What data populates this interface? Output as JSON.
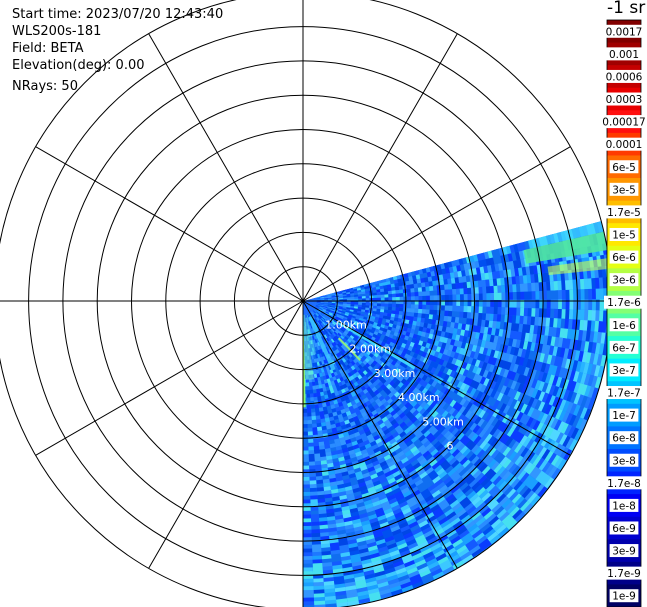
{
  "header": {
    "start_time": "Start time: 2023/07/20 12:43:40",
    "instrument": "WLS200s-181",
    "field": "Field: BETA",
    "elevation": "Elevation(deg): 0.00",
    "nrays": "NRays: 50",
    "colorbar_title": "-1 sr"
  },
  "chart_data": {
    "type": "heatmap",
    "projection": "polar PPI scan",
    "field": "BETA",
    "elevation_deg": 0.0,
    "n_rays": 50,
    "range_rings_km": [
      1,
      2,
      3,
      4,
      5,
      6,
      7,
      8,
      9
    ],
    "range_labels": [
      "1.00km",
      "2.00km",
      "3.00km",
      "4.00km",
      "5.00km",
      "6"
    ],
    "spokes_deg": [
      0,
      30,
      60,
      90,
      120,
      150,
      180,
      210,
      240,
      270,
      300,
      330
    ],
    "scan_sector_azimuth_deg": [
      75,
      180
    ],
    "max_range_km": 9.0,
    "colorbar": {
      "scale": "log",
      "labels": [
        "0.0017",
        "0.001",
        "0.0006",
        "0.0003",
        "0.00017",
        "0.0001",
        "6e-5",
        "3e-5",
        "1.7e-5",
        "1e-5",
        "6e-6",
        "3e-6",
        "1.7e-6",
        "1e-6",
        "6e-7",
        "3e-7",
        "1.7e-7",
        "1e-7",
        "6e-8",
        "3e-8",
        "1.7e-8",
        "1e-8",
        "6e-9",
        "3e-9",
        "1.7e-9",
        "1e-9"
      ],
      "colors": [
        "#820000",
        "#a00000",
        "#c40000",
        "#e80000",
        "#ff1010",
        "#ff3a00",
        "#ff6a00",
        "#ff9600",
        "#ffbe00",
        "#ffe800",
        "#e4ff14",
        "#b4ff44",
        "#84ff74",
        "#54ffa4",
        "#24ffd4",
        "#00ecff",
        "#00c4ff",
        "#009cff",
        "#0074ff",
        "#004cff",
        "#0024ff",
        "#0000f4",
        "#0000d0",
        "#0000ac",
        "#000088",
        "#000064"
      ]
    }
  }
}
